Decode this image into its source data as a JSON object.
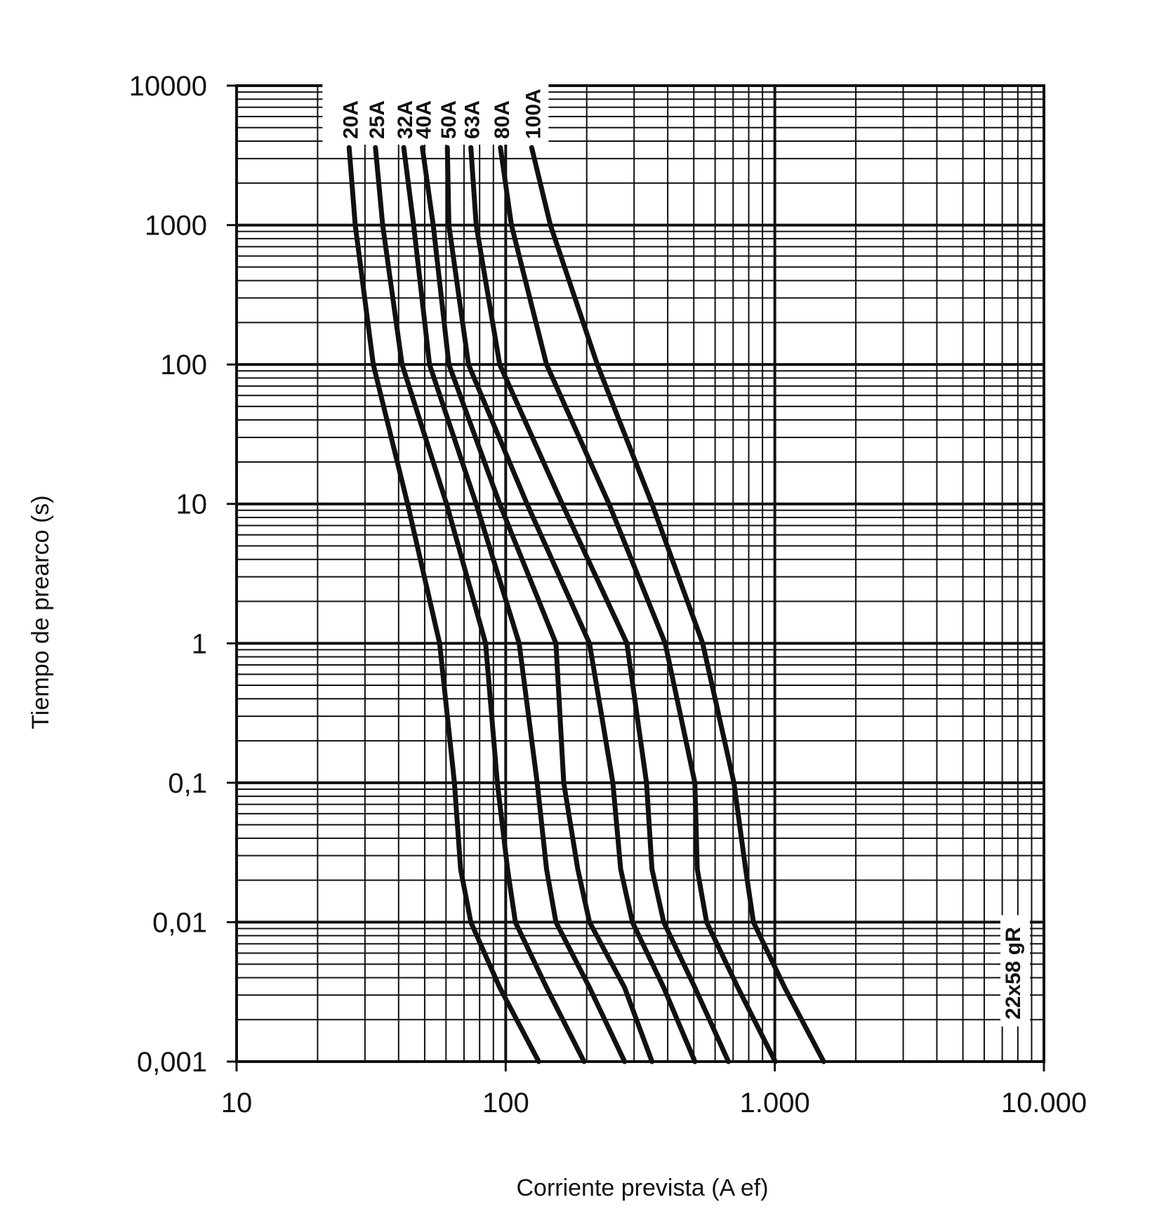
{
  "chart_data": {
    "type": "line",
    "xlabel": "Corriente prevista (A ef)",
    "ylabel": "Tiempo de prearco (s)",
    "annotation": "22x58 gR",
    "xscale": "log",
    "yscale": "log",
    "grid": true,
    "minor_grid": true,
    "xlim": [
      10,
      10000
    ],
    "ylim": [
      0.001,
      10000
    ],
    "xticks": [
      10,
      100,
      {
        "value": 1000,
        "label": "1.000"
      },
      {
        "value": 10000,
        "label": "10.000"
      }
    ],
    "yticks": [
      {
        "value": 0.001,
        "label": "0,001"
      },
      {
        "value": 0.01,
        "label": "0,01"
      },
      {
        "value": 0.1,
        "label": "0,1"
      },
      1,
      10,
      100,
      1000,
      10000
    ],
    "series": [
      {
        "name": "20A",
        "color": "#111111",
        "x": [
          26.2,
          27.6,
          32.2,
          43.2,
          56.8,
          64.5,
          68.0,
          74.2,
          95.0,
          132.7
        ],
        "values": [
          3600,
          1000,
          100,
          10,
          1,
          0.1,
          0.024,
          0.01,
          0.0034,
          0.001
        ]
      },
      {
        "name": "25A",
        "color": "#111111",
        "x": [
          32.8,
          34.9,
          41.2,
          60.3,
          84.2,
          93.1,
          101.6,
          108.6,
          141.8,
          195.4
        ],
        "values": [
          3600,
          1000,
          100,
          10,
          1,
          0.1,
          0.024,
          0.01,
          0.0034,
          0.001
        ]
      },
      {
        "name": "32A",
        "color": "#111111",
        "x": [
          41.8,
          45.5,
          52.1,
          77.7,
          112.2,
          130.9,
          141.8,
          153.7,
          204.8,
          276.6
        ],
        "values": [
          3600,
          1000,
          100,
          10,
          1,
          0.1,
          0.024,
          0.01,
          0.0034,
          0.001
        ]
      },
      {
        "name": "40A",
        "color": "#111111",
        "x": [
          49.0,
          53.8,
          61.5,
          95.0,
          153.7,
          164.3,
          185.3,
          204.8,
          276.6,
          349.5
        ],
        "values": [
          3600,
          1000,
          100,
          10,
          1,
          0.1,
          0.024,
          0.01,
          0.0034,
          0.001
        ]
      },
      {
        "name": "50A",
        "color": "#111111",
        "x": [
          60.7,
          61.5,
          72.7,
          120.0,
          204.8,
          250.2,
          267.5,
          295.7,
          386.4,
          504.7
        ],
        "values": [
          3600,
          1000,
          100,
          10,
          1,
          0.1,
          0.024,
          0.01,
          0.0034,
          0.001
        ]
      },
      {
        "name": "63A",
        "color": "#111111",
        "x": [
          74.2,
          77.7,
          95.0,
          162.1,
          282.2,
          333.6,
          349.5,
          386.4,
          504.7,
          672.5
        ],
        "values": [
          3600,
          1000,
          100,
          10,
          1,
          0.1,
          0.024,
          0.01,
          0.0034,
          0.001
        ]
      },
      {
        "name": "80A",
        "color": "#111111",
        "x": [
          95.6,
          105.0,
          141.8,
          242.0,
          391.5,
          504.7,
          514.9,
          557.8,
          728.8,
          1004
        ],
        "values": [
          3600,
          1000,
          100,
          10,
          1,
          0.1,
          0.024,
          0.01,
          0.0034,
          0.001
        ]
      },
      {
        "name": "100A",
        "color": "#111111",
        "x": [
          124.9,
          146.6,
          218.9,
          349.5,
          539.4,
          704.7,
          779.0,
          832.8,
          1088,
          1519
        ],
        "values": [
          3600,
          1000,
          100,
          10,
          1,
          0.1,
          0.024,
          0.01,
          0.0034,
          0.001
        ]
      }
    ]
  }
}
